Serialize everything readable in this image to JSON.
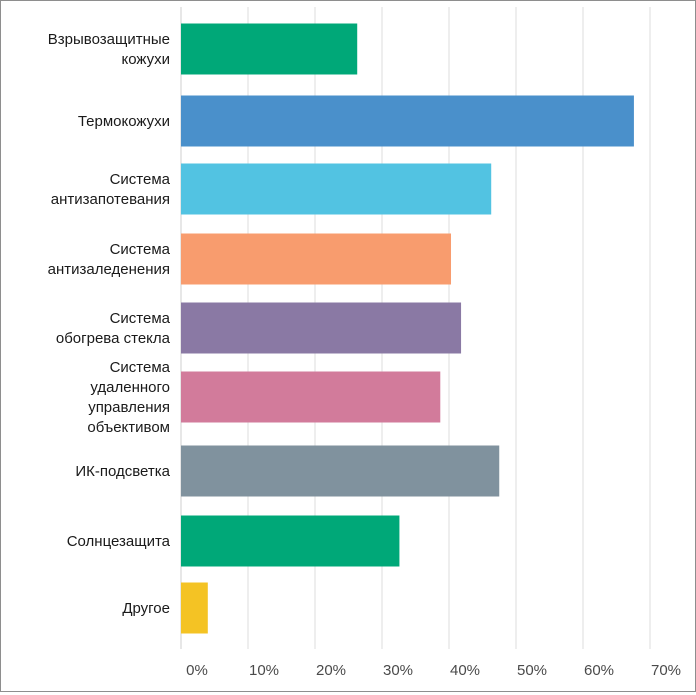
{
  "chart_data": {
    "type": "bar",
    "orientation": "horizontal",
    "categories": [
      [
        "Взрывозащитные",
        "кожухи"
      ],
      [
        "Термокожухи"
      ],
      [
        "Система",
        "антизапотевания"
      ],
      [
        "Система",
        "антизаледенения"
      ],
      [
        "Система",
        "обогрева стекла"
      ],
      [
        "Система",
        "удаленного",
        "управления",
        "объективом"
      ],
      [
        "ИК-подсветка"
      ],
      [
        "Солнцезащита"
      ],
      [
        "Другое"
      ]
    ],
    "values": [
      26.3,
      67.6,
      46.3,
      40.3,
      41.8,
      38.7,
      47.5,
      32.6,
      4.0
    ],
    "colors": [
      "#00a878",
      "#4a90cb",
      "#52c3e2",
      "#f89c6e",
      "#8a79a4",
      "#d27b9b",
      "#80929e",
      "#00a878",
      "#f4c324"
    ],
    "xticks": [
      "0%",
      "10%",
      "20%",
      "30%",
      "40%",
      "50%",
      "60%",
      "70%"
    ],
    "xlim": [
      0,
      70
    ],
    "grid": true
  }
}
